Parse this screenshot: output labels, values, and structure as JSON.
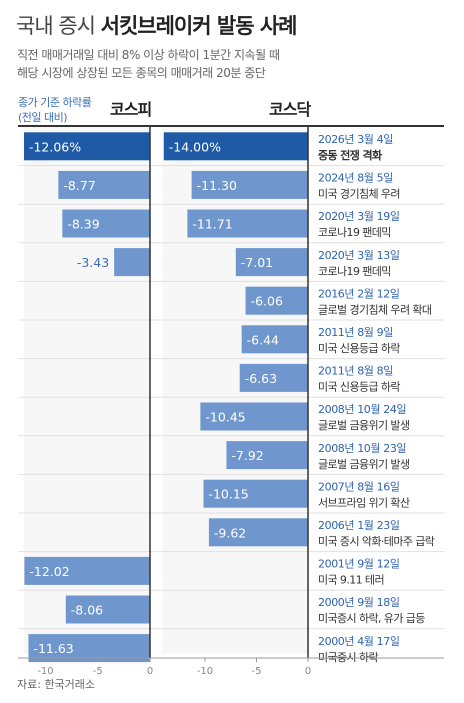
{
  "title_part1": "국내 증시",
  "title_part2": "서킷브레이커 발동 사례",
  "subtitle_line1": "직전 매매거래일 대비 8% 이상 하락이 1분간 지속될 때",
  "subtitle_line2": "해당 시장에 상장된 모든 종목의 매매거래 20분 중단",
  "legend_line1": "종가 기준 하락률",
  "legend_line2": "(전일 대비)",
  "source": "자료: 한국거래소",
  "colors": {
    "highlight": "#1f5aa6",
    "bar": "#6f97cd",
    "value_label": "#3d6fb5",
    "date": "#2e63ad"
  },
  "chart_data": {
    "type": "bar",
    "orientation": "horizontal",
    "panels": [
      {
        "name": "코스피",
        "xlim": [
          -12,
          0
        ],
        "ticks": [
          "-10",
          "-5",
          "0"
        ],
        "tick_values": [
          -10,
          -5,
          0
        ]
      },
      {
        "name": "코스닥",
        "xlim": [
          -14,
          0
        ],
        "ticks": [
          "-10",
          "-5",
          "0"
        ],
        "tick_values": [
          -10,
          -5,
          0
        ]
      }
    ],
    "events": [
      {
        "date": "2026년 3월 4일",
        "desc": "중동 전쟁 격화",
        "kospi": -12.06,
        "kospi_label": "-12.06%",
        "kosdaq": -14.0,
        "kosdaq_label": "-14.00%",
        "highlight": true
      },
      {
        "date": "2024년 8월 5일",
        "desc": "미국 경기침체 우려",
        "kospi": -8.77,
        "kospi_label": "-8.77",
        "kosdaq": -11.3,
        "kosdaq_label": "-11.30",
        "highlight": false
      },
      {
        "date": "2020년 3월 19일",
        "desc": "코로나19 팬데믹",
        "kospi": -8.39,
        "kospi_label": "-8.39",
        "kosdaq": -11.71,
        "kosdaq_label": "-11.71",
        "highlight": false
      },
      {
        "date": "2020년 3월 13일",
        "desc": "코로나19 팬데믹",
        "kospi": -3.43,
        "kospi_label": "-3.43",
        "kosdaq": -7.01,
        "kosdaq_label": "-7.01",
        "highlight": false
      },
      {
        "date": "2016년 2월 12일",
        "desc": "글로벌 경기침체 우려 확대",
        "kospi": null,
        "kospi_label": "",
        "kosdaq": -6.06,
        "kosdaq_label": "-6.06",
        "highlight": false
      },
      {
        "date": "2011년 8월 9일",
        "desc": "미국 신용등급 하락",
        "kospi": null,
        "kospi_label": "",
        "kosdaq": -6.44,
        "kosdaq_label": "-6.44",
        "highlight": false
      },
      {
        "date": "2011년 8월 8일",
        "desc": "미국 신용등급 하락",
        "kospi": null,
        "kospi_label": "",
        "kosdaq": -6.63,
        "kosdaq_label": "-6.63",
        "highlight": false
      },
      {
        "date": "2008년 10월 24일",
        "desc": "글로벌 금융위기 발생",
        "kospi": null,
        "kospi_label": "",
        "kosdaq": -10.45,
        "kosdaq_label": "-10.45",
        "highlight": false
      },
      {
        "date": "2008년 10월 23일",
        "desc": "글로벌 금융위기 발생",
        "kospi": null,
        "kospi_label": "",
        "kosdaq": -7.92,
        "kosdaq_label": "-7.92",
        "highlight": false
      },
      {
        "date": "2007년 8월 16일",
        "desc": "서브프라임 위기 확산",
        "kospi": null,
        "kospi_label": "",
        "kosdaq": -10.15,
        "kosdaq_label": "-10.15",
        "highlight": false
      },
      {
        "date": "2006년 1월 23일",
        "desc": "미국 증시 악화·테마주 급락",
        "kospi": null,
        "kospi_label": "",
        "kosdaq": -9.62,
        "kosdaq_label": "-9.62",
        "highlight": false
      },
      {
        "date": "2001년 9월 12일",
        "desc": "미국 9.11 테러",
        "kospi": -12.02,
        "kospi_label": "-12.02",
        "kosdaq": null,
        "kosdaq_label": "",
        "highlight": false
      },
      {
        "date": "2000년 9월 18일",
        "desc": "미국증시 하락, 유가 급등",
        "kospi": -8.06,
        "kospi_label": "-8.06",
        "kosdaq": null,
        "kosdaq_label": "",
        "highlight": false
      },
      {
        "date": "2000년 4월 17일",
        "desc": "미국증시 하락",
        "kospi": -11.63,
        "kospi_label": "-11.63",
        "kosdaq": null,
        "kosdaq_label": "",
        "highlight": false
      }
    ]
  }
}
